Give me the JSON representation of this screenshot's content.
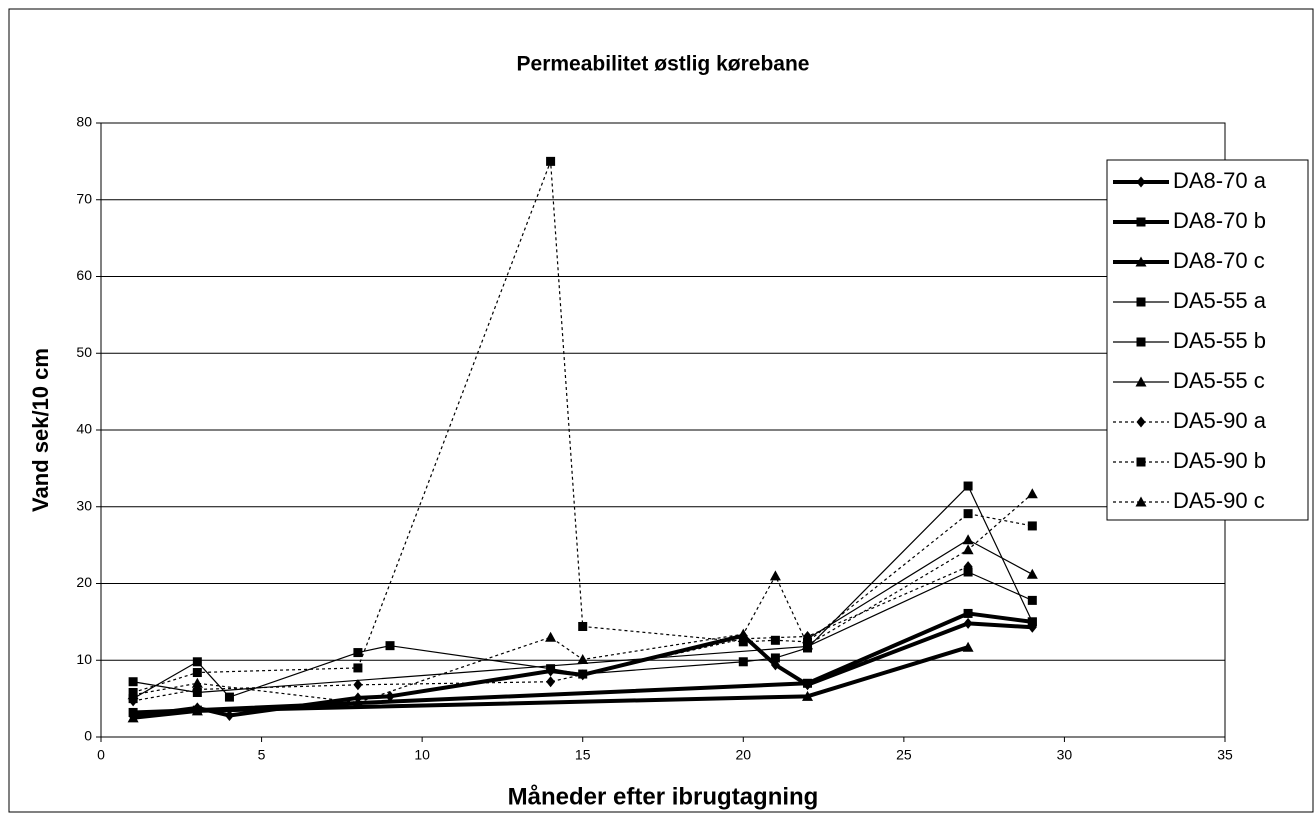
{
  "chart_data": {
    "type": "line",
    "title": "Permeabilitet  østlig kørebane",
    "xlabel": "Måneder efter ibrugtagning",
    "ylabel": "Vand sek/10 cm",
    "xlim": [
      0,
      35
    ],
    "xticks": [
      0,
      5,
      10,
      15,
      20,
      25,
      30,
      35
    ],
    "ylim": [
      0,
      80
    ],
    "yticks": [
      0,
      10,
      20,
      30,
      40,
      50,
      60,
      70,
      80
    ],
    "grid": true,
    "legend": "right",
    "series": [
      {
        "name": "DA8-70 a",
        "color": "#000000",
        "line_width": 4,
        "dash": "solid",
        "marker": "diamond",
        "x": [
          1,
          3,
          4,
          8,
          9,
          14,
          15,
          20,
          21,
          22,
          27,
          29
        ],
        "values": [
          2.7,
          3.8,
          2.8,
          5.1,
          5.3,
          8.6,
          8.1,
          13.2,
          9.4,
          6.8,
          14.8,
          14.3
        ]
      },
      {
        "name": "DA8-70 b",
        "color": "#000000",
        "line_width": 4,
        "dash": "solid",
        "marker": "square",
        "x": [
          1,
          3,
          22,
          27,
          29
        ],
        "values": [
          3.2,
          3.5,
          7.0,
          16.1,
          15.0
        ]
      },
      {
        "name": "DA8-70 c",
        "color": "#000000",
        "line_width": 4,
        "dash": "solid",
        "marker": "triangle",
        "x": [
          1,
          3,
          22,
          27
        ],
        "values": [
          2.5,
          3.4,
          5.3,
          11.7
        ]
      },
      {
        "name": "DA5-55 a",
        "color": "#000000",
        "line_width": 1.2,
        "dash": "solid",
        "marker": "square",
        "x": [
          1,
          3,
          22,
          27,
          29
        ],
        "values": [
          7.2,
          5.8,
          11.8,
          21.5,
          17.8
        ]
      },
      {
        "name": "DA5-55 b",
        "color": "#000000",
        "line_width": 1.2,
        "dash": "solid",
        "marker": "square",
        "x": [
          1,
          3,
          4,
          8,
          9,
          14,
          15,
          20,
          21,
          22,
          27,
          29
        ],
        "values": [
          5.0,
          9.8,
          5.2,
          11.0,
          11.9,
          8.9,
          8.2,
          9.8,
          10.3,
          11.6,
          32.7,
          15.0
        ]
      },
      {
        "name": "DA5-55 c",
        "color": "#000000",
        "line_width": 1.2,
        "dash": "solid",
        "marker": "triangle",
        "x": [
          22,
          27,
          29
        ],
        "values": [
          12.8,
          25.7,
          21.2
        ]
      },
      {
        "name": "DA5-90 a",
        "color": "#000000",
        "line_width": 1.2,
        "dash": "dotted",
        "marker": "diamond",
        "x": [
          1,
          3,
          8,
          14,
          20,
          22,
          27
        ],
        "values": [
          4.7,
          6.2,
          6.8,
          7.2,
          12.8,
          13.1,
          22.2
        ]
      },
      {
        "name": "DA5-90 b",
        "color": "#000000",
        "line_width": 1.2,
        "dash": "dotted",
        "marker": "square",
        "x": [
          1,
          3,
          8,
          14,
          15,
          20,
          21,
          22,
          27,
          29
        ],
        "values": [
          5.8,
          8.4,
          9.0,
          75,
          14.4,
          12.4,
          12.6,
          12.4,
          29.1,
          27.5
        ]
      },
      {
        "name": "DA5-90 c",
        "color": "#000000",
        "line_width": 1.2,
        "dash": "dotted",
        "marker": "triangle",
        "x": [
          1,
          3,
          8,
          14,
          15,
          20,
          21,
          22,
          27,
          29
        ],
        "values": [
          5.5,
          7.0,
          4.5,
          13.0,
          10.1,
          13.4,
          21.0,
          12.0,
          24.4,
          31.7
        ]
      }
    ]
  }
}
